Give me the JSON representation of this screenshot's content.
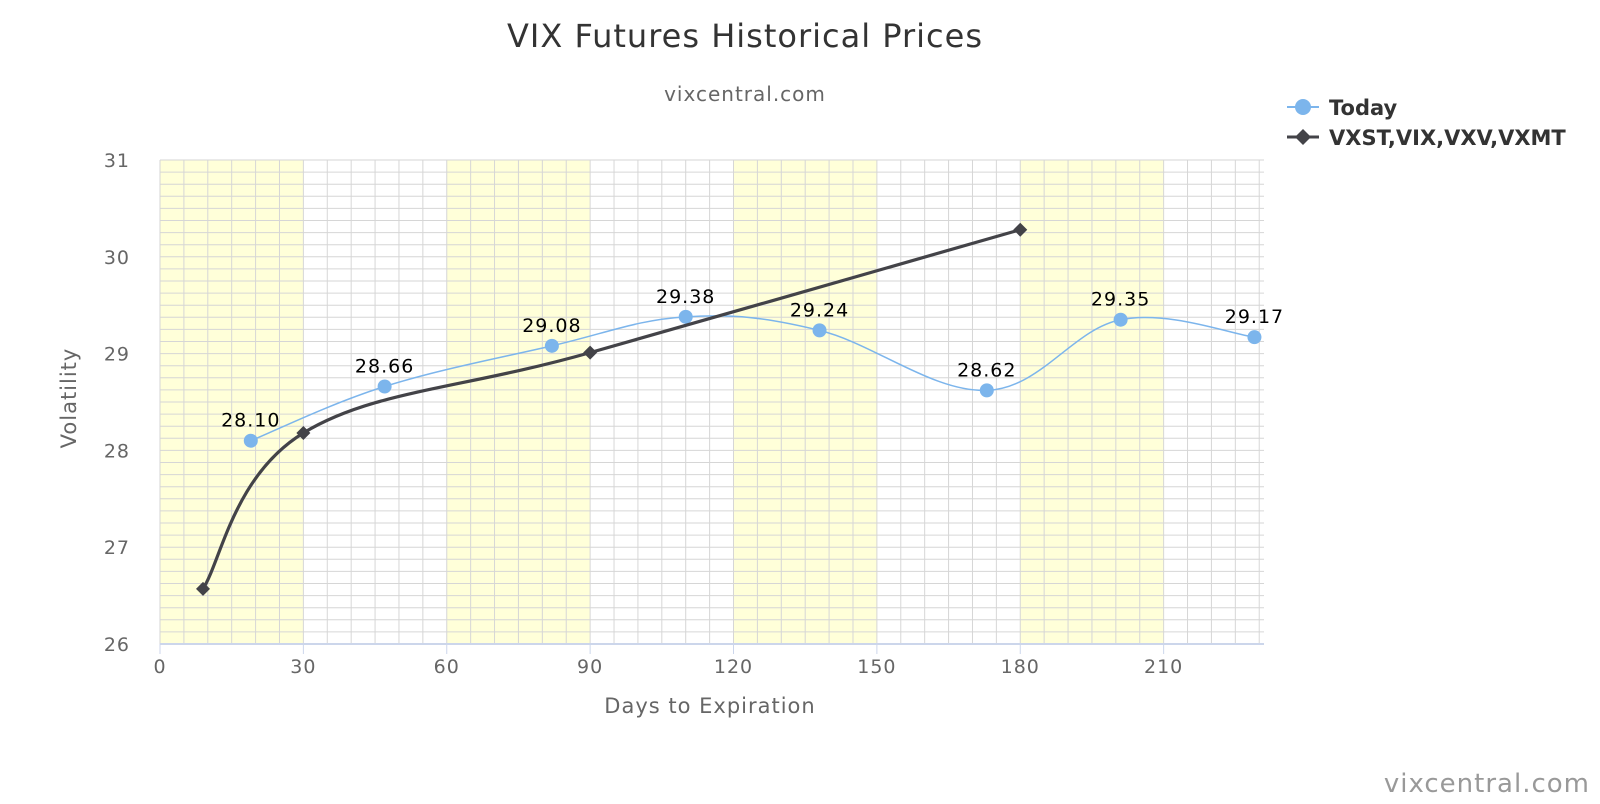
{
  "chart_data": {
    "type": "line",
    "title": "VIX Futures Historical Prices",
    "subtitle": "vixcentral.com",
    "xlabel": "Days to Expiration",
    "ylabel": "Volatility",
    "xlim": [
      0,
      231
    ],
    "ylim": [
      26,
      31
    ],
    "x_ticks": [
      0,
      30,
      60,
      90,
      120,
      150,
      180,
      210
    ],
    "y_ticks": [
      26,
      27,
      28,
      29,
      30,
      31
    ],
    "grid": true,
    "plot_bands_x": [
      [
        0,
        30
      ],
      [
        60,
        90
      ],
      [
        120,
        150
      ],
      [
        180,
        210
      ]
    ],
    "legend_position": "top-right",
    "series": [
      {
        "name": "Today",
        "color": "#7cb5ec",
        "marker": "circle",
        "smooth": true,
        "x": [
          19,
          47,
          82,
          110,
          138,
          173,
          201,
          229
        ],
        "values": [
          28.1,
          28.66,
          29.08,
          29.38,
          29.24,
          28.62,
          29.35,
          29.17
        ],
        "labels": [
          "28.10",
          "28.66",
          "29.08",
          "29.38",
          "29.24",
          "28.62",
          "29.35",
          "29.17"
        ]
      },
      {
        "name": "VXST,VIX,VXV,VXMT",
        "color": "#434348",
        "marker": "diamond",
        "smooth": true,
        "x": [
          9,
          30,
          90,
          180
        ],
        "values": [
          26.57,
          28.18,
          29.01,
          30.28
        ]
      }
    ],
    "credit": "vixcentral.com"
  },
  "colors": {
    "band": "#ffffd9",
    "grid": "#d6d6d6",
    "axis": "#ccd6eb"
  }
}
